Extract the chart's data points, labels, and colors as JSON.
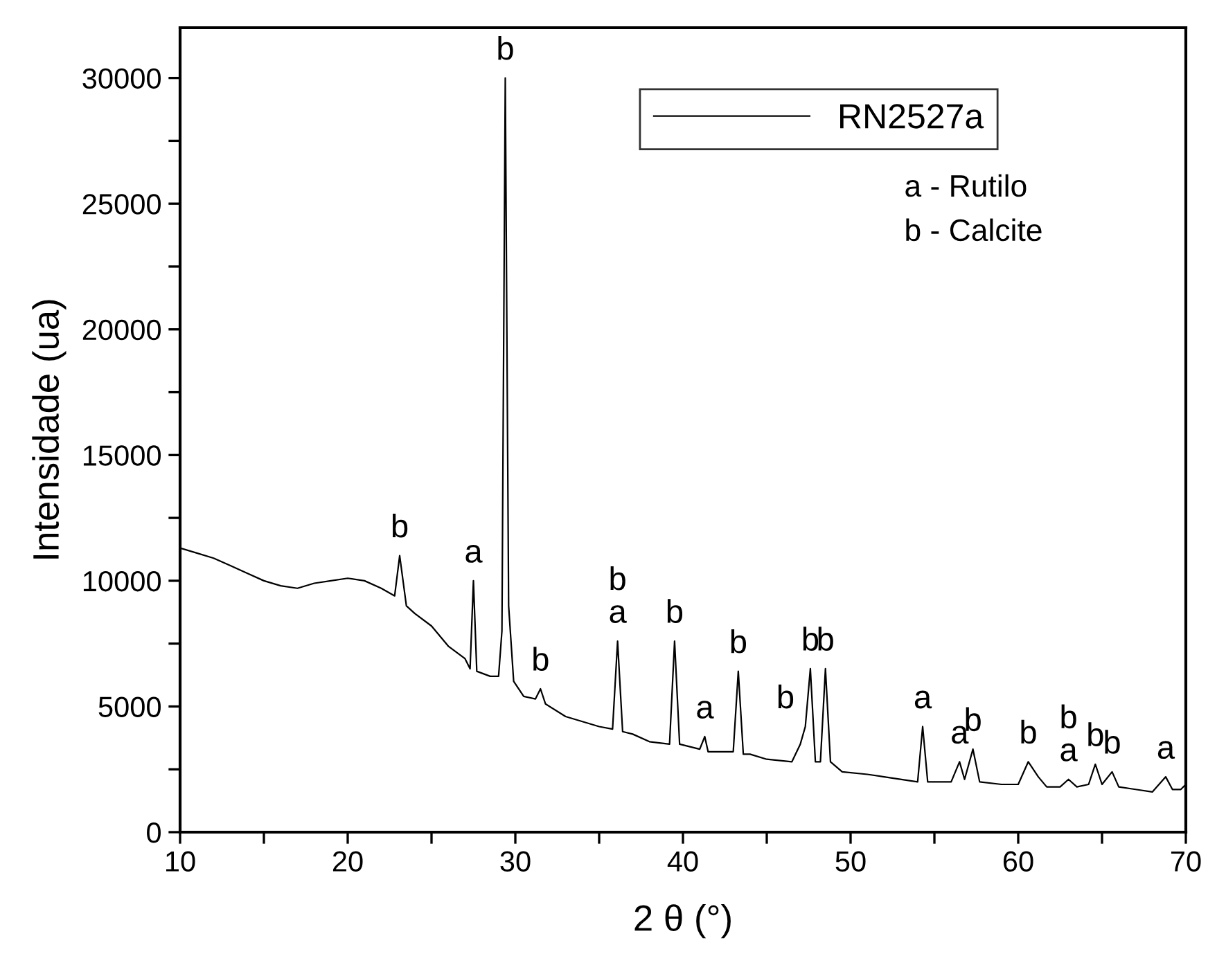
{
  "chart_data": {
    "type": "line",
    "xlabel": "2 θ (°)",
    "ylabel": "Intensidade (ua)",
    "xlim": [
      10,
      70
    ],
    "ylim": [
      0,
      32000
    ],
    "xticks": [
      10,
      {
        "value": 15,
        "label": null
      },
      20,
      {
        "value": 25,
        "label": null
      },
      30,
      {
        "value": 35,
        "label": null
      },
      40,
      {
        "value": 45,
        "label": null
      },
      50,
      {
        "value": 55,
        "label": null
      },
      60,
      {
        "value": 65,
        "label": null
      },
      70
    ],
    "yticks": [
      0,
      {
        "value": 2500,
        "label": null
      },
      5000,
      {
        "value": 7500,
        "label": null
      },
      10000,
      {
        "value": 12500,
        "label": null
      },
      15000,
      {
        "value": 17500,
        "label": null
      },
      20000,
      {
        "value": 22500,
        "label": null
      },
      25000,
      {
        "value": 27500,
        "label": null
      },
      30000
    ],
    "legend": "top right",
    "grid": false,
    "marker": "none",
    "line_style": "solid",
    "series": [
      {
        "name": "RN2527a",
        "color": "#000000",
        "x": [
          10,
          11,
          12,
          13,
          14,
          15,
          16,
          17,
          18,
          19,
          20,
          21,
          22,
          22.8,
          23.1,
          23.5,
          24,
          25,
          26,
          27,
          27.3,
          27.5,
          27.7,
          28.5,
          29.0,
          29.2,
          29.4,
          29.6,
          29.9,
          30.5,
          31.2,
          31.5,
          31.8,
          33,
          34,
          35,
          35.8,
          36.1,
          36.4,
          37,
          38,
          39.2,
          39.5,
          39.8,
          41,
          41.3,
          41.5,
          43,
          43.3,
          43.6,
          44,
          45,
          46.5,
          47,
          47.3,
          47.6,
          47.9,
          48.2,
          48.5,
          48.8,
          49.5,
          51,
          52,
          54,
          54.3,
          54.6,
          56,
          56.5,
          56.8,
          57.3,
          57.7,
          59,
          60,
          60.6,
          61.2,
          61.7,
          62.5,
          63,
          63.5,
          64.2,
          64.6,
          65,
          65.6,
          66,
          67,
          68,
          68.8,
          69.2,
          69.7,
          70
        ],
        "values": [
          11300,
          11100,
          10900,
          10600,
          10300,
          10000,
          9800,
          9700,
          9900,
          10000,
          10100,
          10000,
          9700,
          9400,
          11000,
          9000,
          8700,
          8200,
          7400,
          6900,
          6500,
          10000,
          6400,
          6200,
          6200,
          8000,
          30000,
          9000,
          6000,
          5400,
          5300,
          5700,
          5100,
          4600,
          4400,
          4200,
          4100,
          7600,
          4000,
          3900,
          3600,
          3500,
          7600,
          3500,
          3300,
          3800,
          3200,
          3200,
          6400,
          3100,
          3100,
          2900,
          2800,
          3500,
          4200,
          6500,
          2800,
          2800,
          6500,
          2800,
          2400,
          2300,
          2200,
          2000,
          4200,
          2000,
          2000,
          2800,
          2100,
          3300,
          2000,
          1900,
          1900,
          2800,
          2200,
          1800,
          1800,
          2100,
          1800,
          1900,
          2700,
          1900,
          2400,
          1800,
          1700,
          1600,
          2200,
          1700,
          1700,
          1900
        ]
      }
    ],
    "annotations": [
      {
        "text": "b",
        "x": 23.1,
        "y": 11000
      },
      {
        "text": "a",
        "x": 27.5,
        "y": 10000
      },
      {
        "text": "b",
        "x": 29.4,
        "y": 30000
      },
      {
        "text": "b",
        "x": 31.5,
        "y": 5700
      },
      {
        "text": "b\na",
        "x": 36.1,
        "y": 7600
      },
      {
        "text": "b",
        "x": 39.5,
        "y": 7600
      },
      {
        "text": "a",
        "x": 41.3,
        "y": 3800
      },
      {
        "text": "b",
        "x": 43.3,
        "y": 6400
      },
      {
        "text": "b",
        "x": 47.0,
        "y": 4200
      },
      {
        "text": "b",
        "x": 47.6,
        "y": 6500
      },
      {
        "text": "b",
        "x": 48.5,
        "y": 6500
      },
      {
        "text": "a",
        "x": 54.3,
        "y": 4200
      },
      {
        "text": "a",
        "x": 56.5,
        "y": 2800
      },
      {
        "text": "b",
        "x": 57.3,
        "y": 3300
      },
      {
        "text": "b",
        "x": 60.6,
        "y": 2800
      },
      {
        "text": "b\na",
        "x": 63,
        "y": 2100
      },
      {
        "text": "b",
        "x": 64.6,
        "y": 2700
      },
      {
        "text": "b",
        "x": 65.6,
        "y": 2400
      },
      {
        "text": "a",
        "x": 68.8,
        "y": 2200
      },
      "a - Rutilo",
      "b - Calcite"
    ]
  }
}
